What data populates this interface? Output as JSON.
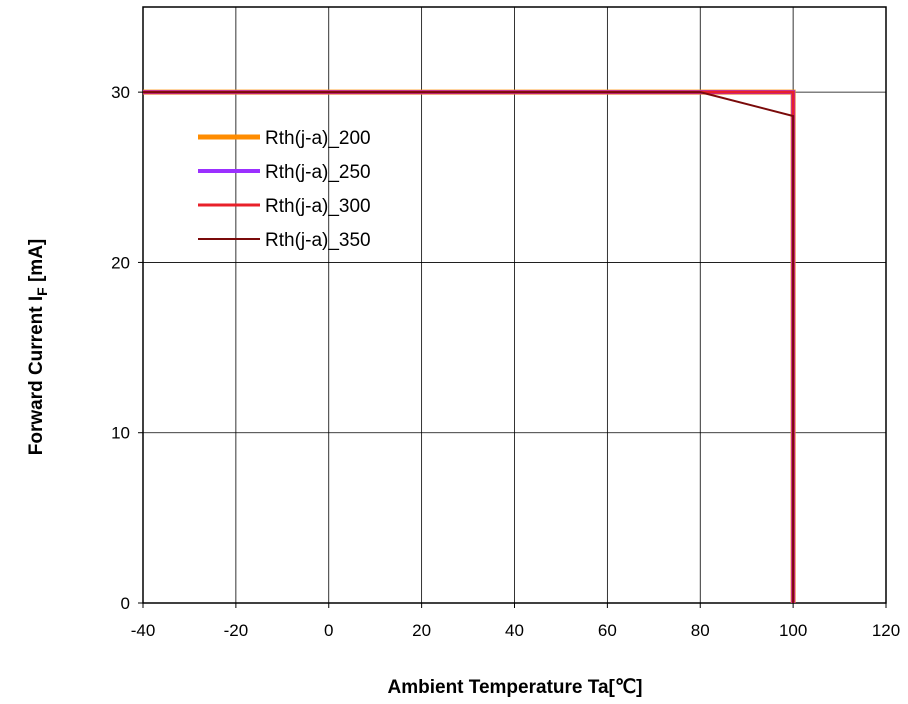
{
  "chart_data": {
    "type": "line",
    "xlabel": "Ambient  Temperature Ta[℃]",
    "ylabel_main": "Forward Current  I",
    "ylabel_sub": "F",
    "ylabel_unit": " [mA]",
    "xlim": [
      -40,
      120
    ],
    "ylim": [
      0,
      35
    ],
    "xticks": [
      -40,
      -20,
      0,
      20,
      40,
      60,
      80,
      100,
      120
    ],
    "yticks": [
      0,
      10,
      20,
      30
    ],
    "grid": true,
    "legend_position": "upper-left",
    "series": [
      {
        "name": "Rth(j-a)_200",
        "color": "#ff8c00",
        "width": 5,
        "points": [
          [
            -40,
            30
          ],
          [
            100,
            30
          ],
          [
            100,
            0
          ]
        ]
      },
      {
        "name": "Rth(j-a)_250",
        "color": "#9b30ff",
        "width": 4,
        "points": [
          [
            -40,
            30
          ],
          [
            100,
            30
          ],
          [
            100,
            0
          ]
        ]
      },
      {
        "name": "Rth(j-a)_300",
        "color": "#e8202a",
        "width": 3,
        "points": [
          [
            -40,
            30
          ],
          [
            100,
            30
          ],
          [
            100,
            0
          ]
        ]
      },
      {
        "name": "Rth(j-a)_350",
        "color": "#7a0a0a",
        "width": 2,
        "points": [
          [
            -40,
            30
          ],
          [
            80,
            30
          ],
          [
            100,
            28.6
          ],
          [
            100,
            0
          ]
        ]
      }
    ]
  }
}
